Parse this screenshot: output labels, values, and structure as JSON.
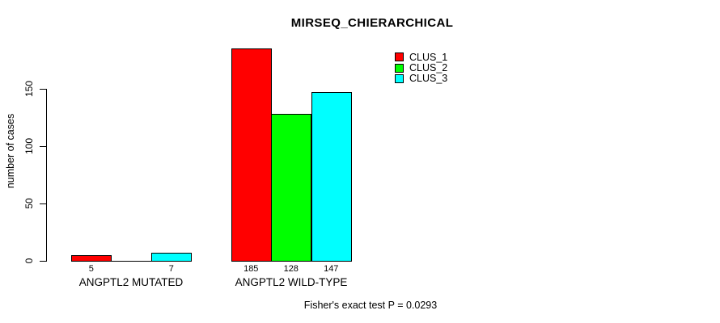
{
  "chart_data": {
    "type": "bar",
    "title": "MIRSEQ_CHIERARCHICAL",
    "ylabel": "number of cases",
    "xlabel": "",
    "categories": [
      "ANGPTL2 MUTATED",
      "ANGPTL2 WILD-TYPE"
    ],
    "series": [
      {
        "name": "CLUS_1",
        "color": "#ff0000",
        "values": [
          5,
          185
        ]
      },
      {
        "name": "CLUS_2",
        "color": "#00ff00",
        "values": [
          0,
          128
        ]
      },
      {
        "name": "CLUS_3",
        "color": "#00ffff",
        "values": [
          7,
          147
        ]
      }
    ],
    "bar_labels": [
      [
        "5",
        "",
        "7"
      ],
      [
        "185",
        "128",
        "147"
      ]
    ],
    "yticks": [
      0,
      50,
      100,
      150
    ],
    "ylim": [
      0,
      150
    ],
    "grid": false,
    "legend_position": "top-right",
    "annotation": "Fisher's exact test P = 0.0293",
    "colors": {
      "bar_border": "#000000",
      "text": "#000000",
      "background": "#ffffff"
    }
  }
}
